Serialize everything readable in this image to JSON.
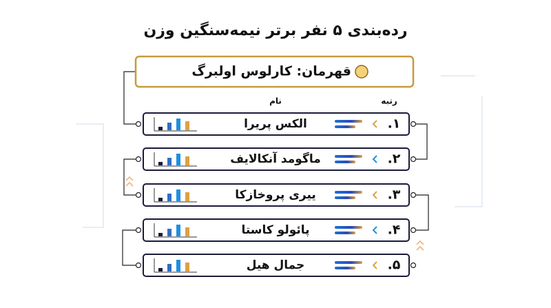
{
  "header": {
    "title": "رده‌بندی ۵ نفر برتر نیمه‌سنگین وزن"
  },
  "champion": "قهرمان: کارلوس اولبرگ",
  "columns": {
    "rank": "رتبه",
    "name": "نام"
  },
  "rows": [
    {
      "rank": "۱.",
      "name": "الکس پریرا"
    },
    {
      "rank": "۲.",
      "name": "ماگومد آنکالایف"
    },
    {
      "rank": "۳.",
      "name": "ییری پروخازکا"
    },
    {
      "rank": "۴.",
      "name": "پائولو کاستا"
    },
    {
      "rank": "۵.",
      "name": "جمال هیل"
    }
  ]
}
